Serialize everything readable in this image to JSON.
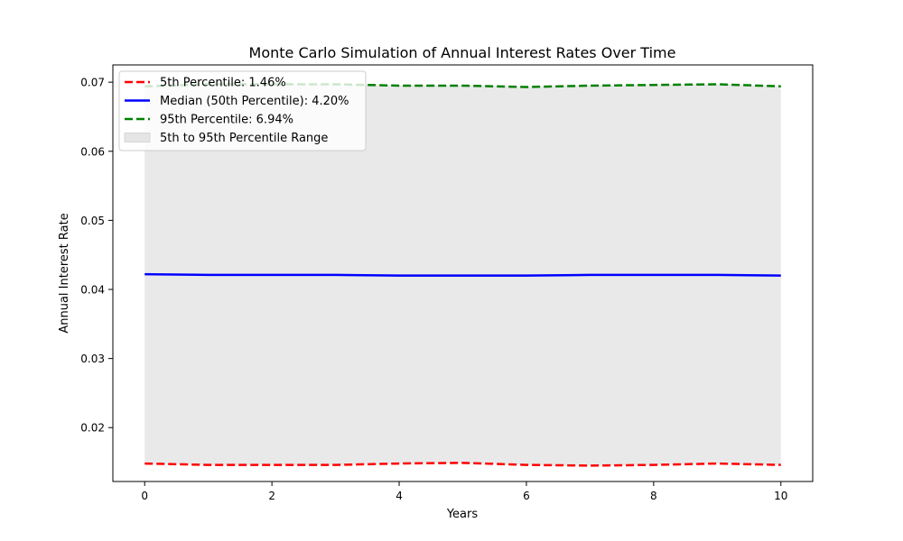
{
  "chart_data": {
    "type": "line",
    "title": "Monte Carlo Simulation of Annual Interest Rates Over Time",
    "xlabel": "Years",
    "ylabel": "Annual Interest Rate",
    "xlim": [
      -0.5,
      10.5
    ],
    "ylim": [
      0.0122,
      0.0725
    ],
    "x_ticks": [
      0,
      2,
      4,
      6,
      8,
      10
    ],
    "x_tick_labels": [
      "0",
      "2",
      "4",
      "6",
      "8",
      "10"
    ],
    "y_ticks": [
      0.02,
      0.03,
      0.04,
      0.05,
      0.06,
      0.07
    ],
    "y_tick_labels": [
      "0.02",
      "0.03",
      "0.04",
      "0.05",
      "0.06",
      "0.07"
    ],
    "grid": false,
    "legend_position": "top-left",
    "x": [
      0,
      1,
      2,
      3,
      4,
      5,
      6,
      7,
      8,
      9,
      10
    ],
    "series": [
      {
        "name": "5th Percentile: 1.46%",
        "color": "#ff0000",
        "style": "dashed",
        "values": [
          0.0148,
          0.0146,
          0.0146,
          0.0146,
          0.0148,
          0.0149,
          0.0146,
          0.0145,
          0.0146,
          0.0148,
          0.0146
        ]
      },
      {
        "name": "Median (50th Percentile): 4.20%",
        "color": "#0000ff",
        "style": "solid",
        "values": [
          0.0422,
          0.0421,
          0.0421,
          0.0421,
          0.042,
          0.042,
          0.042,
          0.0421,
          0.0421,
          0.0421,
          0.042
        ]
      },
      {
        "name": "95th Percentile: 6.94%",
        "color": "#008000",
        "style": "dashed",
        "values": [
          0.0694,
          0.0697,
          0.0697,
          0.0697,
          0.0695,
          0.0695,
          0.0693,
          0.0695,
          0.0696,
          0.0697,
          0.0694
        ]
      }
    ],
    "band": {
      "name": "5th to 95th Percentile Range",
      "color": "#e5e5e5",
      "lower_series": "5th Percentile: 1.46%",
      "upper_series": "95th Percentile: 6.94%"
    }
  }
}
